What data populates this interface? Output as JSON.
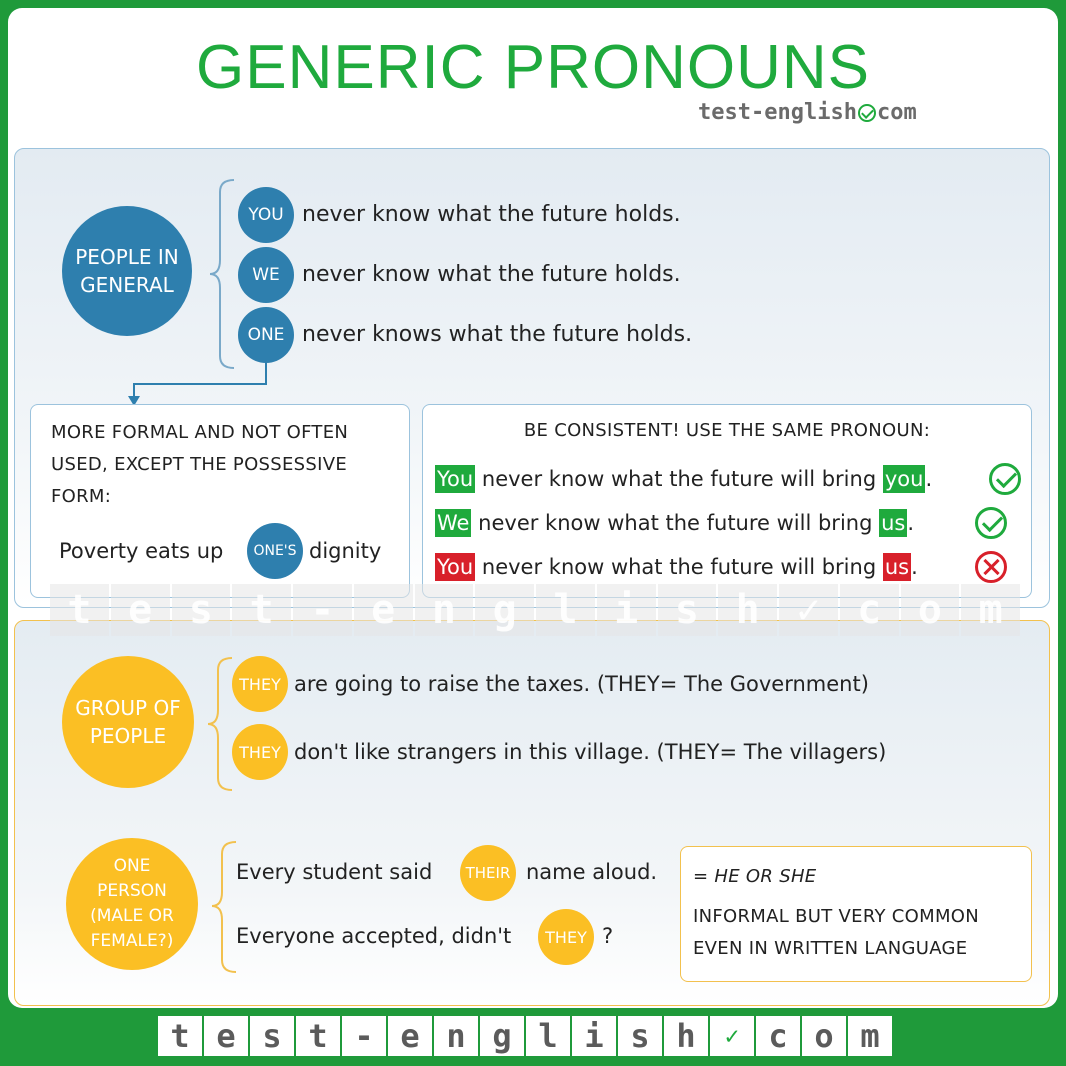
{
  "header": {
    "title": "GENERIC PRONOUNS",
    "site_left": "test-english",
    "site_right": "com"
  },
  "section_general": {
    "circle_label_1": "PEOPLE IN",
    "circle_label_2": "GENERAL",
    "rows": [
      {
        "pronoun": "YOU",
        "text": "never know what the future holds."
      },
      {
        "pronoun": "WE",
        "text": "never know what the future holds."
      },
      {
        "pronoun": "ONE",
        "text": "never knows what the future holds."
      }
    ]
  },
  "formal_box": {
    "line1": "MORE FORMAL AND NOT OFTEN",
    "line2": "USED, EXCEPT THE POSSESSIVE",
    "line3": "FORM:",
    "example_before": "Poverty eats up",
    "example_pronoun": "ONE'S",
    "example_after": "dignity"
  },
  "consistent_box": {
    "title": "BE CONSISTENT! USE THE SAME PRONOUN:",
    "rows": [
      {
        "start": "You",
        "middle": "never know what the future will bring",
        "end": "you",
        "punct": ".",
        "correct": true
      },
      {
        "start": "We",
        "middle": "never know what the future will bring",
        "end": "us",
        "punct": ".",
        "correct": true
      },
      {
        "start": "You",
        "middle": "never know what the future will bring",
        "end": "us",
        "punct": ".",
        "correct": false
      }
    ]
  },
  "watermark_letters": [
    "t",
    "e",
    "s",
    "t",
    "-",
    "e",
    "n",
    "g",
    "l",
    "i",
    "s",
    "h",
    "✓",
    "c",
    "o",
    "m"
  ],
  "section_group": {
    "circle_label_1": "GROUP OF",
    "circle_label_2": "PEOPLE",
    "rows": [
      {
        "pronoun": "THEY",
        "text": "are going to raise the taxes. (THEY= The Government)"
      },
      {
        "pronoun": "THEY",
        "text": "don't like strangers in this village. (THEY= The villagers)"
      }
    ]
  },
  "section_one_person": {
    "circle_lines": [
      "ONE",
      "PERSON",
      "(MALE OR",
      "FEMALE?)"
    ],
    "row1_before": "Every student said",
    "row1_pronoun": "THEIR",
    "row1_after": "name aloud.",
    "row2_before": "Everyone accepted, didn't",
    "row2_pronoun": "THEY",
    "row2_after": "?"
  },
  "note_box": {
    "line1": "= HE OR SHE",
    "line2": "INFORMAL BUT VERY COMMON",
    "line3": "EVEN IN WRITTEN LANGUAGE"
  },
  "footer_letters": [
    "t",
    "e",
    "s",
    "t",
    "-",
    "e",
    "n",
    "g",
    "l",
    "i",
    "s",
    "h",
    "✓",
    "c",
    "o",
    "m"
  ],
  "colors": {
    "green": "#1faa3d",
    "blue": "#2e7fae",
    "yellow": "#fbbf24",
    "red": "#d8202a"
  }
}
